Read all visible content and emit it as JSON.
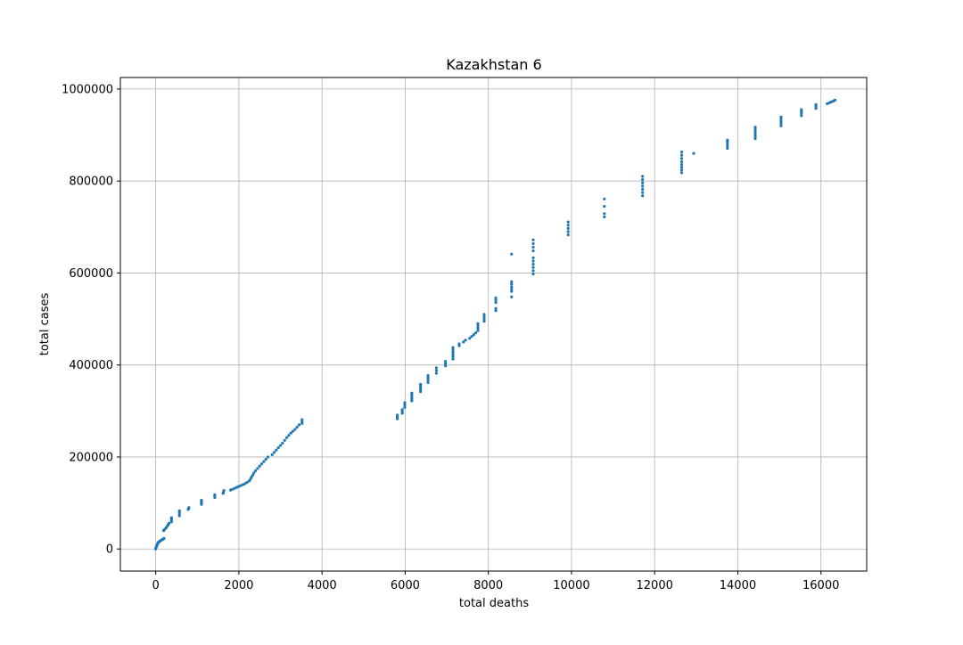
{
  "colors": {
    "marker": "#1f77b4",
    "grid": "#b0b0b0",
    "axes": "#000000",
    "background": "#ffffff"
  },
  "chart_data": {
    "type": "scatter",
    "title": "Kazakhstan 6",
    "xlabel": "total deaths",
    "ylabel": "total cases",
    "xlim": [
      -850,
      17100
    ],
    "ylim": [
      -48000,
      1025000
    ],
    "grid": true,
    "x_ticks": [
      0,
      2000,
      4000,
      6000,
      8000,
      10000,
      12000,
      14000,
      16000
    ],
    "y_ticks": [
      0,
      200000,
      400000,
      600000,
      800000,
      1000000
    ],
    "x_tick_labels": [
      "0",
      "2000",
      "4000",
      "6000",
      "8000",
      "10000",
      "12000",
      "14000",
      "16000"
    ],
    "y_tick_labels": [
      "0",
      "200000",
      "400000",
      "600000",
      "800000",
      "1000000"
    ],
    "series": [
      {
        "marker_color": "#1f77b4",
        "points": [
          [
            0,
            0
          ],
          [
            5,
            2000
          ],
          [
            10,
            3500
          ],
          [
            20,
            6000
          ],
          [
            30,
            8000
          ],
          [
            40,
            10000
          ],
          [
            50,
            12000
          ],
          [
            60,
            14000
          ],
          [
            80,
            15500
          ],
          [
            100,
            17000
          ],
          [
            120,
            18500
          ],
          [
            140,
            19500
          ],
          [
            160,
            20500
          ],
          [
            180,
            21500
          ],
          [
            200,
            23000
          ],
          [
            190,
            40000
          ],
          [
            220,
            43000
          ],
          [
            250,
            46000
          ],
          [
            280,
            50000
          ],
          [
            300,
            53000
          ],
          [
            320,
            56000
          ],
          [
            380,
            59000
          ],
          [
            380,
            62000
          ],
          [
            380,
            65000
          ],
          [
            380,
            68000
          ],
          [
            570,
            72000
          ],
          [
            570,
            76000
          ],
          [
            570,
            80000
          ],
          [
            570,
            83000
          ],
          [
            780,
            86000
          ],
          [
            790,
            88000
          ],
          [
            800,
            90000
          ],
          [
            1100,
            97000
          ],
          [
            1100,
            100000
          ],
          [
            1100,
            103000
          ],
          [
            1100,
            106000
          ],
          [
            1420,
            112000
          ],
          [
            1420,
            115000
          ],
          [
            1420,
            118000
          ],
          [
            1620,
            121000
          ],
          [
            1630,
            124000
          ],
          [
            1640,
            127000
          ],
          [
            1800,
            128000
          ],
          [
            1850,
            130000
          ],
          [
            1900,
            132000
          ],
          [
            1950,
            134000
          ],
          [
            2000,
            136000
          ],
          [
            2050,
            138000
          ],
          [
            2100,
            140000
          ],
          [
            2150,
            142000
          ],
          [
            2200,
            145000
          ],
          [
            2250,
            148000
          ],
          [
            2280,
            152000
          ],
          [
            2300,
            156000
          ],
          [
            2330,
            160000
          ],
          [
            2360,
            165000
          ],
          [
            2400,
            170000
          ],
          [
            2450,
            175000
          ],
          [
            2500,
            180000
          ],
          [
            2550,
            185000
          ],
          [
            2600,
            190000
          ],
          [
            2650,
            195000
          ],
          [
            2700,
            200000
          ],
          [
            2800,
            205000
          ],
          [
            2850,
            210000
          ],
          [
            2900,
            215000
          ],
          [
            2950,
            220000
          ],
          [
            3000,
            225000
          ],
          [
            3050,
            230000
          ],
          [
            3100,
            236000
          ],
          [
            3150,
            242000
          ],
          [
            3200,
            247000
          ],
          [
            3250,
            252000
          ],
          [
            3300,
            256000
          ],
          [
            3350,
            260000
          ],
          [
            3400,
            265000
          ],
          [
            3450,
            270000
          ],
          [
            3520,
            273000
          ],
          [
            3520,
            277000
          ],
          [
            3520,
            281000
          ],
          [
            5810,
            283000
          ],
          [
            5810,
            287000
          ],
          [
            5810,
            291000
          ],
          [
            5930,
            295000
          ],
          [
            5930,
            299000
          ],
          [
            5930,
            303000
          ],
          [
            5990,
            308000
          ],
          [
            5990,
            313000
          ],
          [
            5990,
            318000
          ],
          [
            6160,
            322000
          ],
          [
            6160,
            326000
          ],
          [
            6160,
            330000
          ],
          [
            6160,
            335000
          ],
          [
            6160,
            339000
          ],
          [
            6370,
            342000
          ],
          [
            6370,
            346000
          ],
          [
            6370,
            350000
          ],
          [
            6370,
            354000
          ],
          [
            6370,
            358000
          ],
          [
            6550,
            362000
          ],
          [
            6550,
            367000
          ],
          [
            6550,
            372000
          ],
          [
            6550,
            377000
          ],
          [
            6750,
            382000
          ],
          [
            6750,
            388000
          ],
          [
            6750,
            394000
          ],
          [
            6970,
            398000
          ],
          [
            6970,
            403000
          ],
          [
            6970,
            408000
          ],
          [
            7150,
            413000
          ],
          [
            7150,
            418000
          ],
          [
            7150,
            423000
          ],
          [
            7150,
            428000
          ],
          [
            7150,
            433000
          ],
          [
            7150,
            438000
          ],
          [
            7300,
            442000
          ],
          [
            7300,
            446000
          ],
          [
            7400,
            450000
          ],
          [
            7450,
            454000
          ],
          [
            7550,
            458000
          ],
          [
            7600,
            462000
          ],
          [
            7650,
            466000
          ],
          [
            7700,
            470000
          ],
          [
            7750,
            475000
          ],
          [
            7750,
            480000
          ],
          [
            7750,
            485000
          ],
          [
            7750,
            490000
          ],
          [
            7900,
            495000
          ],
          [
            7900,
            500000
          ],
          [
            7900,
            505000
          ],
          [
            7900,
            510000
          ],
          [
            8180,
            518000
          ],
          [
            8180,
            523000
          ],
          [
            8180,
            536000
          ],
          [
            8180,
            541000
          ],
          [
            8180,
            546000
          ],
          [
            8560,
            548000
          ],
          [
            8560,
            560000
          ],
          [
            8560,
            565000
          ],
          [
            8560,
            570000
          ],
          [
            8560,
            576000
          ],
          [
            8560,
            581000
          ],
          [
            8560,
            641000
          ],
          [
            9080,
            598000
          ],
          [
            9080,
            605000
          ],
          [
            9080,
            612000
          ],
          [
            9080,
            619000
          ],
          [
            9080,
            626000
          ],
          [
            9080,
            633000
          ],
          [
            9080,
            648000
          ],
          [
            9080,
            656000
          ],
          [
            9080,
            664000
          ],
          [
            9080,
            672000
          ],
          [
            9920,
            683000
          ],
          [
            9920,
            690000
          ],
          [
            9920,
            697000
          ],
          [
            9920,
            704000
          ],
          [
            9920,
            711000
          ],
          [
            10790,
            722000
          ],
          [
            10790,
            729000
          ],
          [
            10790,
            745000
          ],
          [
            10790,
            761000
          ],
          [
            11710,
            768000
          ],
          [
            11710,
            775000
          ],
          [
            11710,
            782000
          ],
          [
            11710,
            789000
          ],
          [
            11710,
            796000
          ],
          [
            11710,
            803000
          ],
          [
            11710,
            810000
          ],
          [
            12650,
            818000
          ],
          [
            12650,
            824000
          ],
          [
            12650,
            830000
          ],
          [
            12650,
            836000
          ],
          [
            12650,
            842000
          ],
          [
            12650,
            849000
          ],
          [
            12650,
            856000
          ],
          [
            12650,
            863000
          ],
          [
            12940,
            860000
          ],
          [
            13750,
            871000
          ],
          [
            13750,
            876000
          ],
          [
            13750,
            881000
          ],
          [
            13750,
            886000
          ],
          [
            13750,
            889000
          ],
          [
            14420,
            892000
          ],
          [
            14420,
            897000
          ],
          [
            14420,
            902000
          ],
          [
            14420,
            907000
          ],
          [
            14420,
            912000
          ],
          [
            14420,
            917000
          ],
          [
            15040,
            920000
          ],
          [
            15040,
            925000
          ],
          [
            15040,
            930000
          ],
          [
            15040,
            935000
          ],
          [
            15040,
            939000
          ],
          [
            15530,
            942000
          ],
          [
            15530,
            947000
          ],
          [
            15530,
            951000
          ],
          [
            15530,
            955000
          ],
          [
            15880,
            958000
          ],
          [
            15880,
            962000
          ],
          [
            15880,
            966000
          ],
          [
            16150,
            968000
          ],
          [
            16200,
            970000
          ],
          [
            16250,
            972000
          ],
          [
            16300,
            974000
          ],
          [
            16340,
            976000
          ]
        ]
      }
    ]
  }
}
